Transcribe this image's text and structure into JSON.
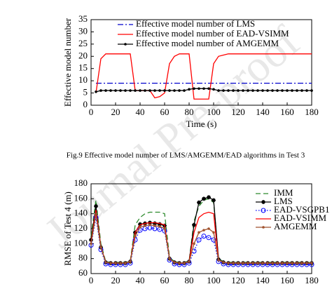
{
  "watermark": "Journal Pre-proof",
  "caption": "Fig.9 Effective model number of LMS/AMGEMM/EAD algorithms in Test 3",
  "chart_data": [
    {
      "type": "line",
      "ylabel": "Effective model number",
      "xlabel": "Time (s)",
      "xlim": [
        0,
        180
      ],
      "xticks": [
        0,
        20,
        40,
        60,
        80,
        100,
        120,
        140,
        160,
        180
      ],
      "ylim": [
        0,
        35
      ],
      "yticks": [
        0,
        5,
        10,
        15,
        20,
        25,
        30,
        35
      ],
      "legend": "upper left",
      "x": [
        4,
        8,
        12,
        16,
        20,
        24,
        28,
        32,
        36,
        40,
        44,
        48,
        52,
        56,
        60,
        64,
        68,
        72,
        76,
        80,
        84,
        88,
        92,
        96,
        100,
        104,
        108,
        112,
        116,
        120,
        124,
        128,
        132,
        136,
        140,
        144,
        148,
        152,
        156,
        160,
        164,
        168,
        172,
        176,
        180
      ],
      "series": [
        {
          "name": "Effective model number of LMS",
          "color": "#0000cc",
          "dash": "dashdot",
          "marker": "none",
          "values": [
            9,
            9,
            9,
            9,
            9,
            9,
            9,
            9,
            9,
            9,
            9,
            9,
            9,
            9,
            9,
            9,
            9,
            9,
            9,
            9,
            9,
            9,
            9,
            9,
            9,
            9,
            9,
            9,
            9,
            9,
            9,
            9,
            9,
            9,
            9,
            9,
            9,
            9,
            9,
            9,
            9,
            9,
            9,
            9,
            9
          ]
        },
        {
          "name": "Effective model number of EAD-VSIMM",
          "color": "#ff0000",
          "dash": "solid",
          "marker": "none",
          "values": [
            5,
            19,
            21,
            21,
            21,
            21,
            21,
            21,
            6,
            6,
            6,
            6,
            3,
            3.5,
            5,
            17,
            20,
            21,
            21,
            21,
            2.5,
            2.5,
            2.5,
            2.5,
            17,
            20,
            20.5,
            21,
            21,
            21,
            21,
            21,
            21,
            21,
            21,
            21,
            21,
            21,
            21,
            21,
            21,
            21,
            21,
            21,
            21
          ]
        },
        {
          "name": "Effective model number of AMGEMM",
          "color": "#000000",
          "dash": "solid",
          "marker": "dot",
          "values": [
            5.5,
            6,
            6,
            6,
            6,
            6,
            6,
            6,
            6,
            6,
            6,
            6,
            6,
            6,
            6,
            6,
            6,
            6,
            6,
            6.5,
            6.8,
            6.8,
            6.8,
            6.8,
            6.5,
            6,
            6,
            6,
            6,
            6,
            6,
            6,
            6,
            6,
            6,
            6,
            6,
            6,
            6,
            6,
            6,
            6,
            6,
            6,
            6
          ]
        }
      ]
    },
    {
      "type": "line",
      "ylabel": "RMSE of Test 4 (m)",
      "xlim": [
        0,
        180
      ],
      "xticks": [
        0,
        20,
        40,
        60,
        80,
        100,
        120,
        140,
        160,
        180
      ],
      "ylim": [
        60,
        180
      ],
      "yticks": [
        60,
        80,
        100,
        120,
        140,
        160,
        180
      ],
      "legend": "upper right",
      "x": [
        0,
        4,
        8,
        12,
        16,
        20,
        24,
        28,
        32,
        36,
        40,
        44,
        48,
        52,
        56,
        60,
        64,
        68,
        72,
        76,
        80,
        84,
        88,
        92,
        96,
        100,
        104,
        108,
        112,
        116,
        120,
        124,
        128,
        132,
        136,
        140,
        144,
        148,
        152,
        156,
        160,
        164,
        168,
        172,
        176,
        180
      ],
      "series": [
        {
          "name": "IMM",
          "color": "#2e8b2e",
          "dash": "dashed",
          "marker": "none",
          "values": [
            110,
            158,
            100,
            76,
            75,
            75,
            75,
            75,
            77,
            125,
            135,
            140,
            142,
            142,
            142,
            140,
            82,
            76,
            75,
            75,
            77,
            130,
            150,
            158,
            160,
            155,
            80,
            76,
            75,
            75,
            75,
            75,
            75,
            75,
            75,
            75,
            75,
            75,
            75,
            75,
            75,
            75,
            75,
            75,
            75,
            75
          ]
        },
        {
          "name": "LMS",
          "color": "#000000",
          "dash": "solid",
          "marker": "star",
          "values": [
            105,
            150,
            95,
            75,
            74,
            74,
            74,
            74,
            76,
            115,
            126,
            127,
            128,
            127,
            126,
            124,
            80,
            75,
            74,
            74,
            76,
            125,
            155,
            160,
            162,
            158,
            79,
            75,
            74,
            74,
            74,
            74,
            74,
            74,
            74,
            74,
            74,
            74,
            74,
            74,
            74,
            74,
            74,
            74,
            74,
            74
          ]
        },
        {
          "name": "EAD-VSGPB1",
          "color": "#0000ff",
          "dash": "dotted",
          "marker": "circle",
          "values": [
            98,
            135,
            92,
            73,
            72,
            72,
            72,
            72,
            74,
            105,
            118,
            120,
            121,
            120,
            119,
            117,
            78,
            73,
            72,
            72,
            74,
            90,
            105,
            110,
            108,
            105,
            76,
            73,
            72,
            72,
            72,
            72,
            72,
            72,
            72,
            72,
            72,
            72,
            72,
            72,
            72,
            72,
            72,
            72,
            72,
            72
          ]
        },
        {
          "name": "EAD-VSIMM",
          "color": "#ff0000",
          "dash": "solid",
          "marker": "none",
          "values": [
            102,
            145,
            96,
            75,
            74,
            74,
            74,
            74,
            76,
            115,
            125,
            127,
            128,
            128,
            127,
            125,
            80,
            75,
            74,
            74,
            76,
            115,
            135,
            140,
            142,
            140,
            78,
            75,
            74,
            74,
            74,
            74,
            74,
            74,
            74,
            74,
            74,
            74,
            74,
            74,
            74,
            74,
            74,
            74,
            74,
            74
          ]
        },
        {
          "name": "AMGEMM",
          "color": "#a0522d",
          "dash": "solid",
          "marker": "dot",
          "values": [
            100,
            140,
            95,
            75,
            74,
            74,
            74,
            74,
            76,
            110,
            122,
            124,
            125,
            124,
            123,
            120,
            80,
            75,
            74,
            74,
            76,
            100,
            115,
            118,
            120,
            115,
            78,
            75,
            74,
            74,
            74,
            74,
            74,
            74,
            74,
            74,
            74,
            74,
            74,
            74,
            74,
            74,
            74,
            74,
            74,
            74
          ]
        }
      ]
    }
  ]
}
